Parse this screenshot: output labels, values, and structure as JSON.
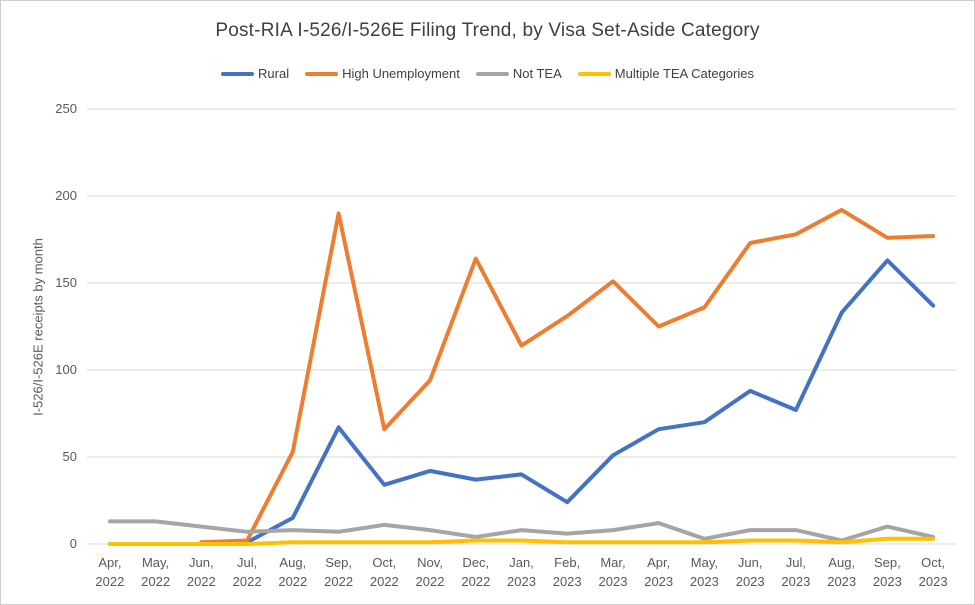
{
  "title": "Post-RIA I-526/I-526E Filing Trend, by Visa Set-Aside Category",
  "legend": {
    "items": [
      {
        "label": "Rural",
        "color": "#4472C4"
      },
      {
        "label": "High Unemployment",
        "color": "#ED7D31"
      },
      {
        "label": "Not TEA",
        "color": "#A5A5A5"
      },
      {
        "label": "Multiple TEA Categories",
        "color": "#FFC000"
      }
    ]
  },
  "y_axis": {
    "label": "I-526/I-526E receipts by month",
    "ticks": [
      0,
      50,
      100,
      150,
      200,
      250
    ]
  },
  "x_axis": {
    "tick_labels": [
      {
        "top": "Apr,",
        "bottom": "2022"
      },
      {
        "top": "May,",
        "bottom": "2022"
      },
      {
        "top": "Jun,",
        "bottom": "2022"
      },
      {
        "top": "Jul,",
        "bottom": "2022"
      },
      {
        "top": "Aug,",
        "bottom": "2022"
      },
      {
        "top": "Sep,",
        "bottom": "2022"
      },
      {
        "top": "Oct,",
        "bottom": "2022"
      },
      {
        "top": "Nov,",
        "bottom": "2022"
      },
      {
        "top": "Dec,",
        "bottom": "2022"
      },
      {
        "top": "Jan,",
        "bottom": "2023"
      },
      {
        "top": "Feb,",
        "bottom": "2023"
      },
      {
        "top": "Mar,",
        "bottom": "2023"
      },
      {
        "top": "Apr,",
        "bottom": "2023"
      },
      {
        "top": "May,",
        "bottom": "2023"
      },
      {
        "top": "Jun,",
        "bottom": "2023"
      },
      {
        "top": "Jul,",
        "bottom": "2023"
      },
      {
        "top": "Aug,",
        "bottom": "2023"
      },
      {
        "top": "Sep,",
        "bottom": "2023"
      },
      {
        "top": "Oct,",
        "bottom": "2023"
      }
    ]
  },
  "chart_data": {
    "type": "line",
    "title": "Post-RIA I-526/I-526E Filing Trend, by Visa Set-Aside Category",
    "xlabel": "",
    "ylabel": "I-526/I-526E receipts by month",
    "ylim": [
      0,
      250
    ],
    "grid": true,
    "legend_position": "top",
    "categories": [
      "Apr 2022",
      "May 2022",
      "Jun 2022",
      "Jul 2022",
      "Aug 2022",
      "Sep 2022",
      "Oct 2022",
      "Nov 2022",
      "Dec 2022",
      "Jan 2023",
      "Feb 2023",
      "Mar 2023",
      "Apr 2023",
      "May 2023",
      "Jun 2023",
      "Jul 2023",
      "Aug 2023",
      "Sep 2023",
      "Oct 2023"
    ],
    "series": [
      {
        "name": "Rural",
        "color": "#4472C4",
        "values": [
          null,
          null,
          null,
          1,
          15,
          67,
          34,
          42,
          37,
          40,
          24,
          51,
          66,
          70,
          88,
          77,
          133,
          163,
          137
        ]
      },
      {
        "name": "High Unemployment",
        "color": "#ED7D31",
        "values": [
          null,
          null,
          1,
          2,
          53,
          190,
          66,
          94,
          164,
          114,
          131,
          151,
          125,
          136,
          173,
          178,
          192,
          176,
          177
        ]
      },
      {
        "name": "Not TEA",
        "color": "#A5A5A5",
        "values": [
          13,
          13,
          10,
          7,
          8,
          7,
          11,
          8,
          4,
          8,
          6,
          8,
          12,
          3,
          8,
          8,
          2,
          10,
          4
        ]
      },
      {
        "name": "Multiple TEA Categories",
        "color": "#FFC000",
        "values": [
          0,
          0,
          0,
          0,
          1,
          1,
          1,
          1,
          2,
          2,
          1,
          1,
          1,
          1,
          2,
          2,
          1,
          3,
          3
        ]
      }
    ]
  }
}
